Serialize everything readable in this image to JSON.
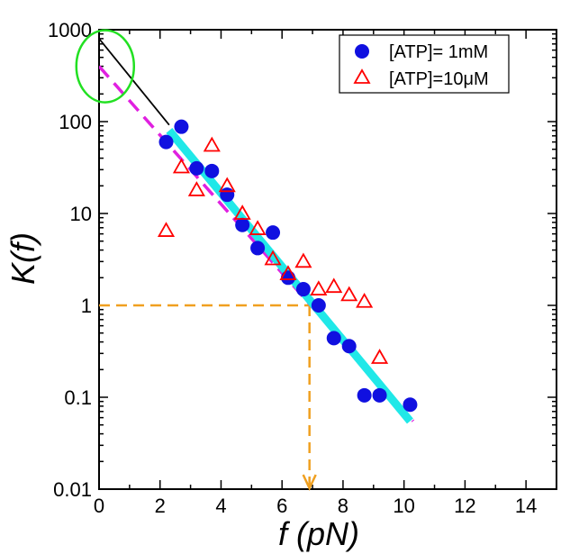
{
  "chart_data": {
    "type": "scatter",
    "title": "",
    "xlabel": "f (pN)",
    "ylabel": "K(f)",
    "xlim": [
      0,
      15
    ],
    "ylim": [
      0.01,
      1000
    ],
    "yscale": "log",
    "x_ticks": [
      0,
      2,
      4,
      6,
      8,
      10,
      12,
      14
    ],
    "x_tick_labels": [
      "0",
      "2",
      "4",
      "6",
      "8",
      "10",
      "12",
      "14"
    ],
    "y_ticks": [
      0.01,
      0.1,
      1,
      10,
      100,
      1000
    ],
    "y_tick_labels": [
      "0.01",
      "0.1",
      "1",
      "10",
      "100",
      "1000"
    ],
    "legend_position": "top-right",
    "series": [
      {
        "name": "[ATP]= 1mM",
        "marker": "filled-circle",
        "color": "#1010e0",
        "points": [
          [
            2.2,
            60
          ],
          [
            2.7,
            88
          ],
          [
            3.2,
            31
          ],
          [
            3.7,
            29
          ],
          [
            4.2,
            16
          ],
          [
            4.7,
            7.5
          ],
          [
            5.2,
            4.2
          ],
          [
            5.7,
            6.2
          ],
          [
            6.2,
            2.0
          ],
          [
            6.7,
            1.5
          ],
          [
            7.2,
            1.0
          ],
          [
            7.7,
            0.44
          ],
          [
            8.2,
            0.36
          ],
          [
            8.7,
            0.105
          ],
          [
            9.2,
            0.105
          ],
          [
            10.2,
            0.083
          ]
        ]
      },
      {
        "name": "[ATP]=10μM",
        "marker": "open-triangle",
        "color": "#ff0000",
        "points": [
          [
            2.2,
            6.5
          ],
          [
            2.7,
            32
          ],
          [
            3.2,
            18
          ],
          [
            3.7,
            55
          ],
          [
            4.2,
            20
          ],
          [
            4.7,
            10
          ],
          [
            5.2,
            6.8
          ],
          [
            5.7,
            3.2
          ],
          [
            6.2,
            2.2
          ],
          [
            6.7,
            3.0
          ],
          [
            7.2,
            1.5
          ],
          [
            7.7,
            1.6
          ],
          [
            8.2,
            1.3
          ],
          [
            8.7,
            1.1
          ],
          [
            9.2,
            0.27
          ]
        ]
      }
    ],
    "fit_lines": [
      {
        "name": "black-fit",
        "color": "#000000",
        "style": "solid",
        "x": [
          0,
          2.3
        ],
        "y": [
          800,
          92
        ]
      },
      {
        "name": "magenta-fit",
        "color": "#e020e0",
        "style": "dashed",
        "x": [
          0,
          10.3
        ],
        "y": [
          400,
          0.055
        ]
      },
      {
        "name": "cyan-fit",
        "color": "#20e8e8",
        "style": "solid-thick",
        "x": [
          2.3,
          10.2
        ],
        "y": [
          80,
          0.055
        ]
      }
    ],
    "annotations": {
      "highlight_ellipse": {
        "color": "#22e022",
        "center": [
          0.2,
          400
        ]
      },
      "guide_lines": {
        "color": "#f0a020",
        "style": "dashed",
        "y_level": 1,
        "x_level": 6.9
      }
    }
  }
}
